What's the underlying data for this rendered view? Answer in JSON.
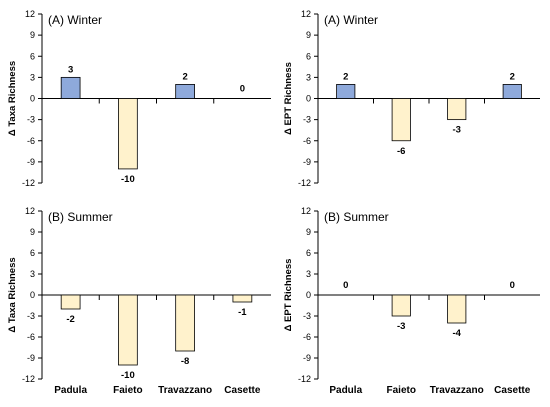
{
  "colors": {
    "positive": "#8EA9DB",
    "negative": "#FFF2CC",
    "stroke": "#000000",
    "axis": "#000000"
  },
  "chart_data": [
    {
      "type": "bar",
      "title": "(A) Winter",
      "ylabel": "Δ Taxa Richness",
      "categories": [
        "Padula",
        "Faieto",
        "Travazzano",
        "Casette"
      ],
      "values": [
        3,
        -10,
        2,
        0
      ],
      "ylim": [
        -12,
        12
      ],
      "yticks": [
        12,
        9,
        6,
        3,
        0,
        -3,
        -6,
        -9,
        -12
      ],
      "show_x_labels": false
    },
    {
      "type": "bar",
      "title": "(A) Winter",
      "ylabel": "Δ EPT Richness",
      "categories": [
        "Padula",
        "Faieto",
        "Travazzano",
        "Casette"
      ],
      "values": [
        2,
        -6,
        -3,
        2
      ],
      "ylim": [
        -12,
        12
      ],
      "yticks": [
        12,
        9,
        6,
        3,
        0,
        -3,
        -6,
        -9,
        -12
      ],
      "show_x_labels": false
    },
    {
      "type": "bar",
      "title": "(B) Summer",
      "ylabel": "Δ Taxa Richness",
      "categories": [
        "Padula",
        "Faieto",
        "Travazzano",
        "Casette"
      ],
      "values": [
        -2,
        -10,
        -8,
        -1
      ],
      "ylim": [
        -12,
        12
      ],
      "yticks": [
        12,
        9,
        6,
        3,
        0,
        -3,
        -6,
        -9,
        -12
      ],
      "show_x_labels": true
    },
    {
      "type": "bar",
      "title": "(B) Summer",
      "ylabel": "Δ EPT Richness",
      "categories": [
        "Padula",
        "Faieto",
        "Travazzano",
        "Casette"
      ],
      "values": [
        0,
        -3,
        -4,
        0
      ],
      "ylim": [
        -12,
        12
      ],
      "yticks": [
        12,
        9,
        6,
        3,
        0,
        -3,
        -6,
        -9,
        -12
      ],
      "show_x_labels": true
    }
  ]
}
